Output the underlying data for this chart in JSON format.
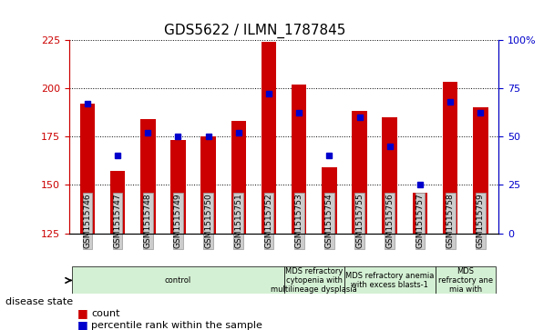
{
  "title": "GDS5622 / ILMN_1787845",
  "samples": [
    "GSM1515746",
    "GSM1515747",
    "GSM1515748",
    "GSM1515749",
    "GSM1515750",
    "GSM1515751",
    "GSM1515752",
    "GSM1515753",
    "GSM1515754",
    "GSM1515755",
    "GSM1515756",
    "GSM1515757",
    "GSM1515758",
    "GSM1515759"
  ],
  "counts": [
    192,
    157,
    184,
    173,
    175,
    183,
    224,
    202,
    159,
    188,
    185,
    146,
    203,
    190
  ],
  "percentile_ranks": [
    67,
    40,
    52,
    50,
    50,
    52,
    72,
    62,
    40,
    60,
    45,
    25,
    68,
    62
  ],
  "ylim_left": [
    125,
    225
  ],
  "ylim_right": [
    0,
    100
  ],
  "yticks_left": [
    125,
    150,
    175,
    200,
    225
  ],
  "yticks_right": [
    0,
    25,
    50,
    75,
    100
  ],
  "bar_color": "#cc0000",
  "marker_color": "#0000cc",
  "bar_width": 0.5,
  "disease_groups": [
    {
      "label": "control",
      "start": 0,
      "end": 7,
      "color": "#e8f8e8"
    },
    {
      "label": "MDS refractory\ncytopenia with\nmultilineage dysplasia",
      "start": 7,
      "end": 9,
      "color": "#e8f8e8"
    },
    {
      "label": "MDS refractory anemia\nwith excess blasts-1",
      "start": 9,
      "end": 12,
      "color": "#e8f8e8"
    },
    {
      "label": "MDS\nrefractory ane\nmia with",
      "start": 12,
      "end": 14,
      "color": "#e8f8e8"
    }
  ],
  "disease_state_label": "disease state",
  "legend_items": [
    {
      "label": "count",
      "color": "#cc0000"
    },
    {
      "label": "percentile rank within the sample",
      "color": "#0000cc"
    }
  ],
  "grid_color": "#000000",
  "bg_color": "#ffffff",
  "plot_bg_color": "#ffffff",
  "tick_color_left": "#cc0000",
  "tick_color_right": "#0000cc"
}
